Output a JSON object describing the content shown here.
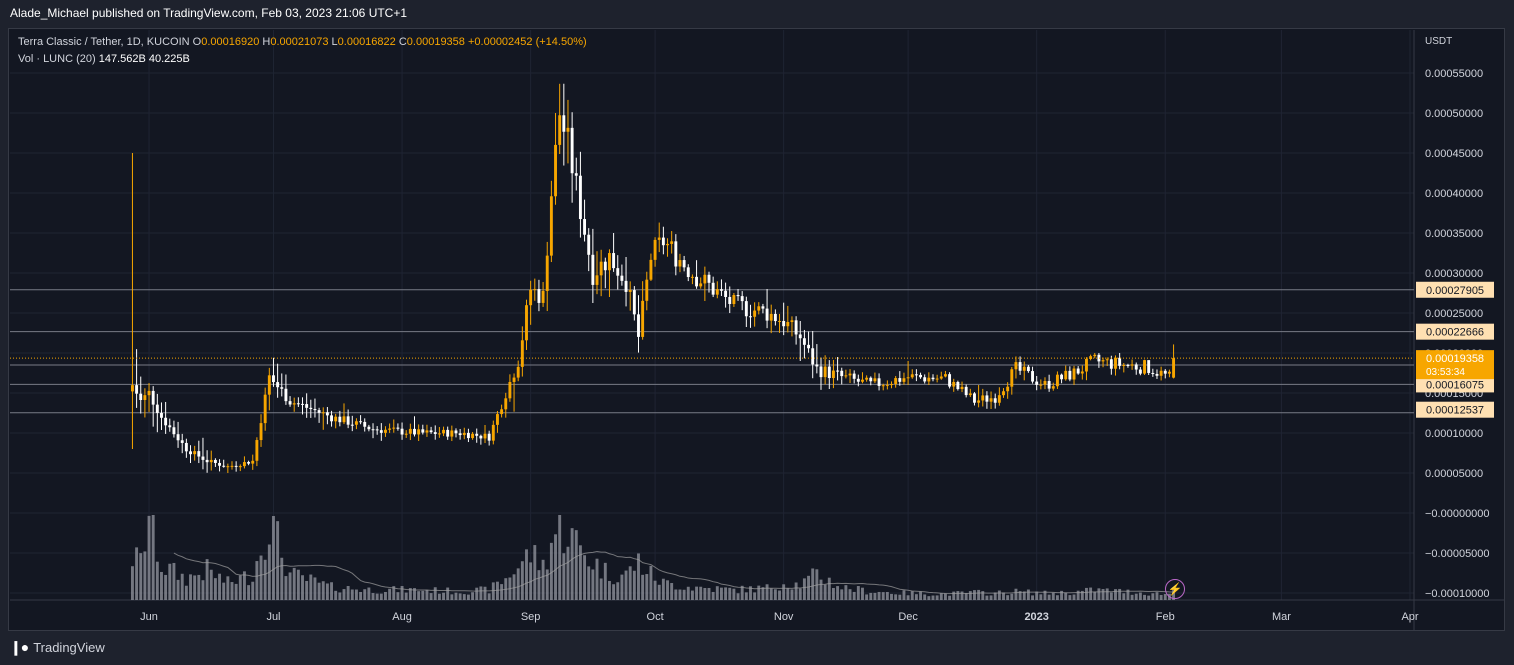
{
  "header": {
    "publisher": "Alade_Michael published on TradingView.com, Feb 03, 2023 21:06 UTC+1"
  },
  "legend": {
    "symbol": "Terra Classic / Tether, 1D, KUCOIN",
    "open_label": "O",
    "open": "0.00016920",
    "high_label": "H",
    "high": "0.00021073",
    "low_label": "L",
    "low": "0.00016822",
    "close_label": "C",
    "close": "0.00019358",
    "change": "+0.00002452 (+14.50%)",
    "volume_label": "Vol · LUNC (20)",
    "volume": "147.562B",
    "volume_ma": "40.225B"
  },
  "footer": {
    "brand": "TradingView"
  },
  "icons": {
    "logo": "tradingview-logo-icon",
    "bolt": "lightning-bolt-icon"
  },
  "colors": {
    "up": "#f7a600",
    "down": "#ffffff",
    "hline": "#787b86",
    "price_tag": "#f7a600",
    "level_tag": "#ffe0b2",
    "volume": "#9598a1",
    "volume_ma": "#a0a0a0"
  },
  "chart_data": {
    "type": "candlestick",
    "yaxis_unit": "USDT",
    "ylim": [
      -0.00012,
      0.00062
    ],
    "y_ticks": [
      "0.00055000",
      "0.00050000",
      "0.00045000",
      "0.00040000",
      "0.00035000",
      "0.00030000",
      "0.00025000",
      "0.00020000",
      "0.00015000",
      "0.00010000",
      "0.00005000",
      "−0.00000000",
      "−0.00005000",
      "−0.00010000"
    ],
    "y_tick_values": [
      0.00055,
      0.0005,
      0.00045,
      0.0004,
      0.00035,
      0.0003,
      0.00025,
      0.0002,
      0.00015,
      0.0001,
      5e-05,
      0,
      -5e-05,
      -0.0001
    ],
    "x_ticks": [
      {
        "label": "Jun",
        "date": "2022-06-01"
      },
      {
        "label": "Jul",
        "date": "2022-07-01"
      },
      {
        "label": "Aug",
        "date": "2022-08-01"
      },
      {
        "label": "Sep",
        "date": "2022-09-01"
      },
      {
        "label": "Oct",
        "date": "2022-10-01"
      },
      {
        "label": "Nov",
        "date": "2022-11-01"
      },
      {
        "label": "Dec",
        "date": "2022-12-01"
      },
      {
        "label": "2023",
        "date": "2023-01-01"
      },
      {
        "label": "Feb",
        "date": "2023-02-01"
      },
      {
        "label": "Mar",
        "date": "2023-03-01"
      },
      {
        "label": "Apr",
        "date": "2023-04-01"
      }
    ],
    "x_range": [
      "2022-05-25",
      "2023-04-01"
    ],
    "price_levels": [
      "0.00027905",
      "0.00022666",
      "0.00018503",
      "0.00016075",
      "0.00012537"
    ],
    "price_level_values": [
      0.00027905,
      0.00022666,
      0.00018503,
      0.00016075,
      0.00012537
    ],
    "last_price": "0.00019358",
    "last_price_value": 0.00019358,
    "countdown": "03:53:34",
    "anchors": [
      {
        "date": "2022-05-28",
        "close": 0.00016,
        "high": 0.00045,
        "low": 8e-05,
        "vol": 0.5
      },
      {
        "date": "2022-05-30",
        "close": 0.00014,
        "high": 0.0002,
        "low": 6e-05,
        "vol": 0.45
      },
      {
        "date": "2022-06-01",
        "close": 0.00015,
        "high": 0.0002,
        "low": 9e-05,
        "vol": 1.0
      },
      {
        "date": "2022-06-04",
        "close": 0.00012,
        "high": 0.00015,
        "low": 8e-05,
        "vol": 0.4
      },
      {
        "date": "2022-06-10",
        "close": 8e-05,
        "high": 0.00011,
        "low": 6e-05,
        "vol": 0.25
      },
      {
        "date": "2022-06-15",
        "close": 6.5e-05,
        "high": 9e-05,
        "low": 4e-05,
        "vol": 0.35
      },
      {
        "date": "2022-06-20",
        "close": 5.8e-05,
        "high": 7e-05,
        "low": 5e-05,
        "vol": 0.2
      },
      {
        "date": "2022-06-26",
        "close": 6.5e-05,
        "high": 8e-05,
        "low": 5e-05,
        "vol": 0.3
      },
      {
        "date": "2022-06-30",
        "close": 0.00017,
        "high": 0.0002,
        "low": 7e-05,
        "vol": 0.95
      },
      {
        "date": "2022-07-05",
        "close": 0.00014,
        "high": 0.00017,
        "low": 0.00012,
        "vol": 0.3
      },
      {
        "date": "2022-07-15",
        "close": 0.00012,
        "high": 0.00014,
        "low": 0.0001,
        "vol": 0.15
      },
      {
        "date": "2022-07-25",
        "close": 0.000105,
        "high": 0.00013,
        "low": 9e-05,
        "vol": 0.12
      },
      {
        "date": "2022-08-05",
        "close": 0.0001,
        "high": 0.00012,
        "low": 9e-05,
        "vol": 0.12
      },
      {
        "date": "2022-08-15",
        "close": 0.0001,
        "high": 0.00011,
        "low": 8e-05,
        "vol": 0.1
      },
      {
        "date": "2022-08-22",
        "close": 9.5e-05,
        "high": 0.00011,
        "low": 8e-05,
        "vol": 0.12
      },
      {
        "date": "2022-08-26",
        "close": 0.00015,
        "high": 0.00016,
        "low": 0.0001,
        "vol": 0.25
      },
      {
        "date": "2022-08-29",
        "close": 0.00019,
        "high": 0.0002,
        "low": 0.00014,
        "vol": 0.4
      },
      {
        "date": "2022-09-01",
        "close": 0.00028,
        "high": 0.0003,
        "low": 0.0002,
        "vol": 0.55
      },
      {
        "date": "2022-09-04",
        "close": 0.00027,
        "high": 0.00029,
        "low": 0.00024,
        "vol": 0.4
      },
      {
        "date": "2022-09-06",
        "close": 0.0004,
        "high": 0.00042,
        "low": 0.00026,
        "vol": 0.7
      },
      {
        "date": "2022-09-08",
        "close": 0.0005,
        "high": 0.00058,
        "low": 0.00037,
        "vol": 0.85
      },
      {
        "date": "2022-09-10",
        "close": 0.00046,
        "high": 0.00054,
        "low": 0.0004,
        "vol": 0.8
      },
      {
        "date": "2022-09-13",
        "close": 0.00038,
        "high": 0.00046,
        "low": 0.00034,
        "vol": 0.6
      },
      {
        "date": "2022-09-16",
        "close": 0.0003,
        "high": 0.00036,
        "low": 0.00025,
        "vol": 0.45
      },
      {
        "date": "2022-09-20",
        "close": 0.00032,
        "high": 0.00036,
        "low": 0.00027,
        "vol": 0.3
      },
      {
        "date": "2022-09-24",
        "close": 0.00029,
        "high": 0.00032,
        "low": 0.00024,
        "vol": 0.3
      },
      {
        "date": "2022-09-27",
        "close": 0.00022,
        "high": 0.00028,
        "low": 0.00018,
        "vol": 0.45
      },
      {
        "date": "2022-09-30",
        "close": 0.00032,
        "high": 0.00036,
        "low": 0.00029,
        "vol": 0.3
      },
      {
        "date": "2022-10-03",
        "close": 0.00034,
        "high": 0.00037,
        "low": 0.00031,
        "vol": 0.2
      },
      {
        "date": "2022-10-10",
        "close": 0.0003,
        "high": 0.00032,
        "low": 0.00028,
        "vol": 0.15
      },
      {
        "date": "2022-10-20",
        "close": 0.00026,
        "high": 0.00028,
        "low": 0.00023,
        "vol": 0.12
      },
      {
        "date": "2022-10-28",
        "close": 0.00025,
        "high": 0.00028,
        "low": 0.00022,
        "vol": 0.14
      },
      {
        "date": "2022-11-01",
        "close": 0.00024,
        "high": 0.00028,
        "low": 0.0002,
        "vol": 0.2
      },
      {
        "date": "2022-11-05",
        "close": 0.00022,
        "high": 0.00025,
        "low": 0.00019,
        "vol": 0.18
      },
      {
        "date": "2022-11-09",
        "close": 0.00018,
        "high": 0.00022,
        "low": 0.00013,
        "vol": 0.3
      },
      {
        "date": "2022-11-15",
        "close": 0.00017,
        "high": 0.00019,
        "low": 0.00015,
        "vol": 0.15
      },
      {
        "date": "2022-11-22",
        "close": 0.00016,
        "high": 0.00018,
        "low": 0.00015,
        "vol": 0.1
      },
      {
        "date": "2022-12-01",
        "close": 0.00017,
        "high": 0.00019,
        "low": 0.00016,
        "vol": 0.08
      },
      {
        "date": "2022-12-10",
        "close": 0.000168,
        "high": 0.00018,
        "low": 0.00016,
        "vol": 0.07
      },
      {
        "date": "2022-12-17",
        "close": 0.00014,
        "high": 0.00016,
        "low": 0.00013,
        "vol": 0.09
      },
      {
        "date": "2022-12-22",
        "close": 0.000145,
        "high": 0.00016,
        "low": 0.00013,
        "vol": 0.08
      },
      {
        "date": "2022-12-27",
        "close": 0.00018,
        "high": 0.0002,
        "low": 0.00015,
        "vol": 0.1
      },
      {
        "date": "2023-01-03",
        "close": 0.00016,
        "high": 0.00017,
        "low": 0.00015,
        "vol": 0.08
      },
      {
        "date": "2023-01-10",
        "close": 0.000175,
        "high": 0.00019,
        "low": 0.00016,
        "vol": 0.09
      },
      {
        "date": "2023-01-15",
        "close": 0.00019,
        "high": 0.0002,
        "low": 0.00017,
        "vol": 0.12
      },
      {
        "date": "2023-01-22",
        "close": 0.000185,
        "high": 0.0002,
        "low": 0.00017,
        "vol": 0.1
      },
      {
        "date": "2023-01-28",
        "close": 0.000182,
        "high": 0.00019,
        "low": 0.00017,
        "vol": 0.08
      },
      {
        "date": "2023-02-02",
        "close": 0.000169,
        "high": 0.00018,
        "low": 0.00016,
        "vol": 0.07
      },
      {
        "date": "2023-02-03",
        "close": 0.00019358,
        "high": 0.00021073,
        "low": 0.00016822,
        "vol": 0.12
      }
    ]
  }
}
